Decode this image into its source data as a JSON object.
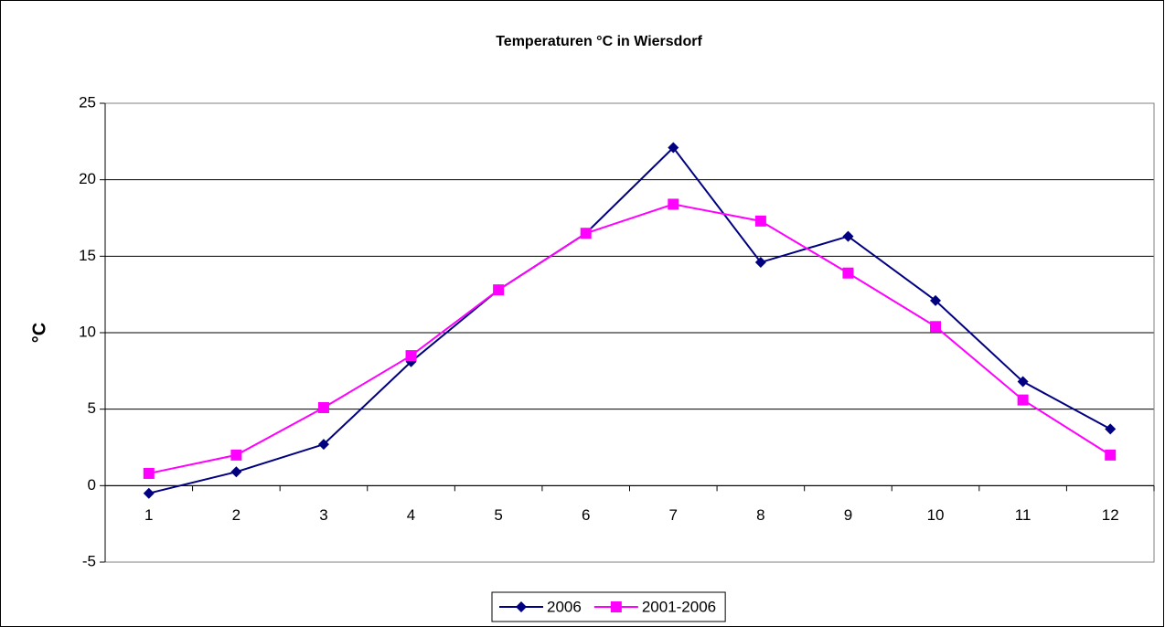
{
  "chart_data": {
    "type": "line",
    "title": "Temperaturen °C in Wiersdorf",
    "y_label": "°C",
    "categories": [
      1,
      2,
      3,
      4,
      5,
      6,
      7,
      8,
      9,
      10,
      11,
      12
    ],
    "series": [
      {
        "name": "2006",
        "color": "#000080",
        "marker": "diamond",
        "values": [
          -0.5,
          0.9,
          2.7,
          8.1,
          12.8,
          16.5,
          22.1,
          14.6,
          16.3,
          12.1,
          6.8,
          3.7
        ]
      },
      {
        "name": "2001-2006",
        "color": "#ff00ff",
        "marker": "square",
        "values": [
          0.8,
          2.0,
          5.1,
          8.5,
          12.8,
          16.5,
          18.4,
          17.3,
          13.9,
          10.4,
          5.6,
          2.0
        ]
      }
    ],
    "ylim": [
      -5,
      25
    ],
    "yticks": [
      -5,
      0,
      5,
      10,
      15,
      20,
      25
    ],
    "grid": true,
    "legend": "bottom"
  }
}
